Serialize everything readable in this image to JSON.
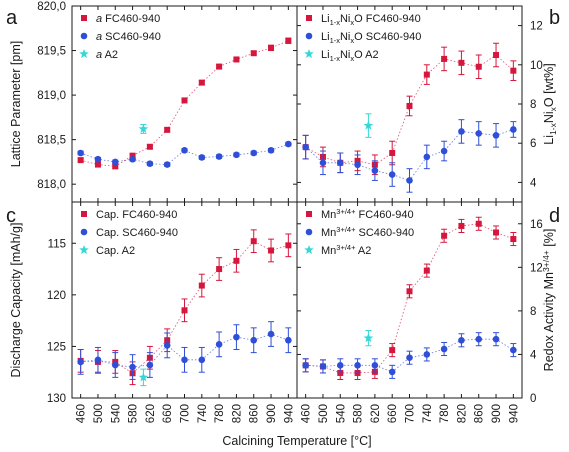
{
  "figure": {
    "x_axis_label": "Calcining Temperature [°C]"
  },
  "colors": {
    "red": "#d6163c",
    "blue": "#2f4fd9",
    "cyan": "#35d7d7"
  },
  "chart_data": [
    {
      "panel": "a",
      "type": "scatter",
      "ylabel": "Lattice Parameter  [pm]",
      "y_axis_side": "left",
      "ylim": [
        817.8,
        820.0
      ],
      "yticks": [
        818.0,
        818.5,
        819.0,
        819.5,
        820.0
      ],
      "ytick_labels": [
        "818,0",
        "818,5",
        "819,0",
        "819,5",
        "820,0"
      ],
      "legend_position": "top-left",
      "series": [
        {
          "name": "a FC460-940",
          "label_prefix": "a",
          "label_rest": " FC460-940",
          "color": "red",
          "marker": "square",
          "trend_line": true,
          "x": [
            460,
            500,
            540,
            580,
            620,
            660,
            700,
            740,
            780,
            820,
            860,
            900,
            940
          ],
          "y": [
            818.27,
            818.22,
            818.2,
            818.32,
            818.42,
            818.61,
            818.94,
            819.14,
            819.32,
            819.4,
            819.47,
            819.53,
            819.61
          ],
          "err": [
            0.02,
            0.02,
            0.02,
            0.02,
            0.02,
            0.02,
            0.02,
            0.02,
            0.02,
            0.02,
            0.02,
            0.03,
            0.03
          ]
        },
        {
          "name": "a SC460-940",
          "label_prefix": "a",
          "label_rest": " SC460-940",
          "color": "blue",
          "marker": "circle",
          "trend_line": true,
          "x": [
            460,
            500,
            540,
            580,
            620,
            660,
            700,
            740,
            780,
            820,
            860,
            900,
            940
          ],
          "y": [
            818.35,
            818.28,
            818.25,
            818.28,
            818.23,
            818.22,
            818.38,
            818.3,
            818.31,
            818.33,
            818.35,
            818.38,
            818.45
          ],
          "err": [
            0.02,
            0.02,
            0.02,
            0.02,
            0.02,
            0.02,
            0.02,
            0.02,
            0.02,
            0.02,
            0.02,
            0.02,
            0.02
          ]
        },
        {
          "name": "a A2",
          "label_prefix": "a",
          "label_rest": " A2",
          "color": "cyan",
          "marker": "star",
          "trend_line": false,
          "x": [
            605
          ],
          "y": [
            818.62
          ],
          "err": [
            0.05
          ]
        }
      ]
    },
    {
      "panel": "b",
      "type": "scatter",
      "ylabel": "Li1-xNixO [wt%]",
      "ylabel_main": "Li",
      "ylabel_sub1": "1-x",
      "ylabel_mid": "Ni",
      "ylabel_sub2": "x",
      "ylabel_end": "O [wt%]",
      "y_axis_side": "right",
      "ylim": [
        3,
        13
      ],
      "yticks": [
        4,
        6,
        8,
        10,
        12
      ],
      "ytick_labels": [
        "4",
        "6",
        "8",
        "10",
        "12"
      ],
      "legend_position": "top-left",
      "series": [
        {
          "name": "Li1-xNixO FC460-940",
          "label_prefix": "Li",
          "label_rest": "1-xNixO FC460-940",
          "color": "red",
          "marker": "square",
          "trend_line": true,
          "x": [
            460,
            500,
            540,
            580,
            620,
            660,
            700,
            740,
            780,
            820,
            860,
            900,
            940
          ],
          "y": [
            5.8,
            5.3,
            5.0,
            5.1,
            4.9,
            5.5,
            7.9,
            9.5,
            10.3,
            10.1,
            9.9,
            10.5,
            9.7
          ],
          "err": [
            0.6,
            0.5,
            0.5,
            0.5,
            0.5,
            0.6,
            0.5,
            0.5,
            0.6,
            0.6,
            0.6,
            0.6,
            0.5
          ]
        },
        {
          "name": "Li1-xNixO SC460-940",
          "label_prefix": "Li",
          "label_rest": "1-xNixO SC460-940",
          "color": "blue",
          "marker": "circle",
          "trend_line": true,
          "x": [
            460,
            500,
            540,
            580,
            620,
            660,
            700,
            740,
            780,
            820,
            860,
            900,
            940
          ],
          "y": [
            5.8,
            5.0,
            5.0,
            4.9,
            4.6,
            4.4,
            4.1,
            5.3,
            5.6,
            6.6,
            6.5,
            6.4,
            6.7
          ],
          "err": [
            0.6,
            0.6,
            0.5,
            0.5,
            0.5,
            0.6,
            0.6,
            0.6,
            0.5,
            0.6,
            0.6,
            0.6,
            0.4
          ]
        },
        {
          "name": "Li1-xNixO A2",
          "label_prefix": "Li",
          "label_rest": "1-xNixO A2",
          "color": "cyan",
          "marker": "star",
          "trend_line": false,
          "x": [
            605
          ],
          "y": [
            6.9
          ],
          "err": [
            0.6
          ]
        }
      ]
    },
    {
      "panel": "c",
      "type": "scatter",
      "ylabel": "Discharge Capacity [mAh/g]",
      "y_axis_side": "left",
      "ylim": [
        130,
        111
      ],
      "yticks": [
        115,
        120,
        125,
        130
      ],
      "ytick_labels": [
        "115",
        "120",
        "125",
        "130"
      ],
      "legend_position": "top-left",
      "series": [
        {
          "name": "Cap. FC460-940",
          "label_prefix": "",
          "label_rest": "Cap. FC460-940",
          "color": "red",
          "marker": "square",
          "trend_line": true,
          "x": [
            460,
            500,
            540,
            580,
            620,
            660,
            700,
            740,
            780,
            820,
            860,
            900,
            940
          ],
          "y": [
            126.4,
            126.5,
            126.5,
            127.6,
            126.1,
            124.4,
            121.5,
            119.1,
            117.5,
            116.7,
            114.8,
            115.7,
            115.2
          ],
          "err": [
            1.1,
            1.1,
            1.1,
            1.1,
            1.1,
            1.1,
            1.1,
            1.1,
            1.1,
            1.1,
            1.1,
            1.1,
            1.1
          ]
        },
        {
          "name": "Cap. SC460-940",
          "label_prefix": "",
          "label_rest": "Cap. SC460-940",
          "color": "blue",
          "marker": "circle",
          "trend_line": true,
          "x": [
            460,
            500,
            540,
            580,
            620,
            660,
            700,
            740,
            780,
            820,
            860,
            900,
            940
          ],
          "y": [
            126.5,
            126.3,
            126.8,
            127.0,
            126.8,
            124.9,
            126.3,
            126.3,
            124.8,
            124.1,
            124.4,
            123.8,
            124.4
          ],
          "err": [
            1.2,
            1.2,
            1.2,
            1.2,
            1.2,
            1.2,
            1.2,
            1.2,
            1.2,
            1.2,
            1.2,
            1.2,
            1.2
          ]
        },
        {
          "name": "Cap. A2",
          "label_prefix": "",
          "label_rest": "Cap. A2",
          "color": "cyan",
          "marker": "star",
          "trend_line": false,
          "x": [
            605
          ],
          "y": [
            128.0
          ],
          "err": [
            0.8
          ]
        }
      ]
    },
    {
      "panel": "d",
      "type": "scatter",
      "ylabel": "Redox Activity Mn3+/4+ [%]",
      "ylabel_main": "Redox Activity Mn",
      "ylabel_sup": "3+/4+",
      "ylabel_end": " [%]",
      "y_axis_side": "right",
      "ylim": [
        0,
        18
      ],
      "yticks": [
        0,
        4,
        8,
        12,
        16
      ],
      "ytick_labels": [
        "0",
        "4",
        "8",
        "12",
        "16"
      ],
      "legend_position": "top-left",
      "series": [
        {
          "name": "Mn3+/4+ FC460-940",
          "label_prefix": "Mn",
          "label_rest": "3+/4+ FC460-940",
          "color": "red",
          "marker": "square",
          "trend_line": true,
          "x": [
            460,
            500,
            540,
            580,
            620,
            660,
            700,
            740,
            780,
            820,
            860,
            900,
            940
          ],
          "y": [
            3.0,
            2.9,
            2.3,
            2.3,
            2.4,
            4.4,
            9.8,
            11.7,
            14.9,
            15.8,
            16.0,
            15.2,
            14.6
          ],
          "err": [
            0.6,
            0.6,
            0.6,
            0.6,
            0.6,
            0.6,
            0.6,
            0.6,
            0.6,
            0.6,
            0.6,
            0.6,
            0.6
          ]
        },
        {
          "name": "Mn3+/4+ SC460-940",
          "label_prefix": "Mn",
          "label_rest": "3+/4+ SC460-940",
          "color": "blue",
          "marker": "circle",
          "trend_line": true,
          "x": [
            460,
            500,
            540,
            580,
            620,
            660,
            700,
            740,
            780,
            820,
            860,
            900,
            940
          ],
          "y": [
            3.0,
            2.9,
            3.0,
            3.0,
            3.0,
            2.4,
            3.7,
            4.0,
            4.5,
            5.3,
            5.4,
            5.4,
            4.4
          ],
          "err": [
            0.6,
            0.6,
            0.6,
            0.6,
            0.6,
            0.6,
            0.6,
            0.6,
            0.6,
            0.6,
            0.6,
            0.6,
            0.6
          ]
        },
        {
          "name": "Mn3+/4+ A2",
          "label_prefix": "Mn",
          "label_rest": "3+/4+ A2",
          "color": "cyan",
          "marker": "star",
          "trend_line": false,
          "x": [
            605
          ],
          "y": [
            5.5
          ],
          "err": [
            0.7
          ]
        }
      ]
    }
  ],
  "x_axis": {
    "xlim": [
      440,
      960
    ],
    "ticks": [
      460,
      500,
      540,
      580,
      620,
      660,
      700,
      740,
      780,
      820,
      860,
      900,
      940
    ],
    "tick_labels": [
      "460",
      "500",
      "540",
      "580",
      "620",
      "660",
      "700",
      "740",
      "780",
      "820",
      "860",
      "900",
      "940"
    ]
  }
}
